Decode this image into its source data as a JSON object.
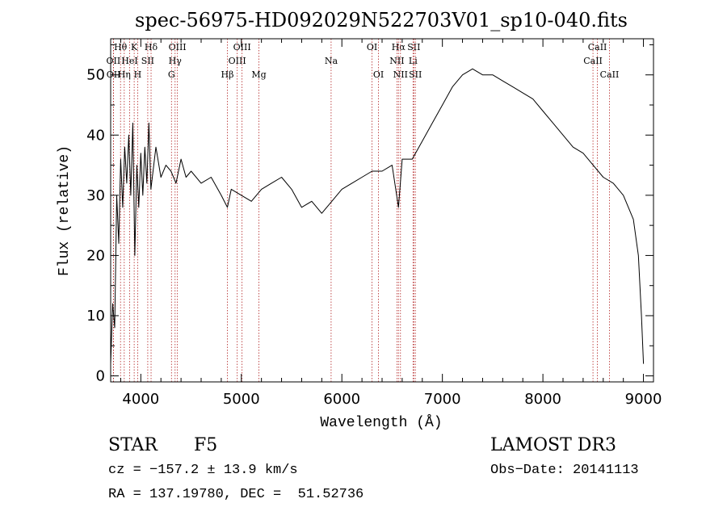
{
  "chart_data": {
    "type": "line",
    "title": "spec-56975-HD092029N522703V01_sp10-040.fits",
    "xlabel": "Wavelength (Å)",
    "ylabel": "Flux (relative)",
    "xlim": [
      3700,
      9100
    ],
    "ylim": [
      -1,
      56
    ],
    "xticks": [
      4000,
      5000,
      6000,
      7000,
      8000,
      9000
    ],
    "yticks": [
      0,
      10,
      20,
      30,
      40,
      50
    ],
    "grid": false,
    "series": [
      {
        "x": [
          3700,
          3720,
          3740,
          3760,
          3780,
          3800,
          3820,
          3840,
          3860,
          3880,
          3900,
          3920,
          3940,
          3960,
          3980,
          4000,
          4020,
          4040,
          4060,
          4080,
          4100,
          4150,
          4200,
          4250,
          4300,
          4350,
          4400,
          4450,
          4500,
          4600,
          4700,
          4800,
          4861,
          4900,
          5000,
          5100,
          5200,
          5300,
          5400,
          5500,
          5600,
          5700,
          5800,
          5900,
          6000,
          6100,
          6200,
          6300,
          6400,
          6500,
          6563,
          6600,
          6700,
          6800,
          6900,
          7000,
          7100,
          7200,
          7300,
          7400,
          7500,
          7600,
          7700,
          7800,
          7900,
          8000,
          8100,
          8200,
          8300,
          8400,
          8500,
          8600,
          8700,
          8800,
          8900,
          8950,
          8980,
          9000
        ],
        "y": [
          2,
          12,
          8,
          30,
          22,
          36,
          28,
          38,
          32,
          40,
          30,
          42,
          20,
          35,
          28,
          37,
          30,
          38,
          32,
          42,
          31,
          38,
          33,
          35,
          34,
          32,
          36,
          33,
          34,
          32,
          33,
          30,
          28,
          31,
          30,
          29,
          31,
          32,
          33,
          31,
          28,
          29,
          27,
          29,
          31,
          32,
          33,
          34,
          34,
          35,
          28,
          36,
          36,
          39,
          42,
          45,
          48,
          50,
          51,
          50,
          50,
          49,
          48,
          47,
          46,
          44,
          42,
          40,
          38,
          37,
          35,
          33,
          32,
          30,
          26,
          20,
          10,
          2
        ]
      }
    ],
    "line_markers": [
      {
        "label": "Hθ",
        "x": 3798,
        "row": 1
      },
      {
        "label": "OII",
        "x": 3727,
        "row": 2
      },
      {
        "label": "OII",
        "x": 3729,
        "row": 3
      },
      {
        "label": "K",
        "x": 3934,
        "row": 1
      },
      {
        "label": "HeI",
        "x": 3889,
        "row": 2
      },
      {
        "label": "Hη",
        "x": 3835,
        "row": 3
      },
      {
        "label": "H",
        "x": 3969,
        "row": 3
      },
      {
        "label": "Hδ",
        "x": 4102,
        "row": 1
      },
      {
        "label": "SII",
        "x": 4069,
        "row": 2
      },
      {
        "label": "OIII",
        "x": 4364,
        "row": 1
      },
      {
        "label": "Hγ",
        "x": 4341,
        "row": 2
      },
      {
        "label": "G",
        "x": 4305,
        "row": 3
      },
      {
        "label": "OIII",
        "x": 5007,
        "row": 1
      },
      {
        "label": "OIII",
        "x": 4959,
        "row": 2
      },
      {
        "label": "Hβ",
        "x": 4861,
        "row": 3
      },
      {
        "label": "Mg",
        "x": 5175,
        "row": 3
      },
      {
        "label": "Na",
        "x": 5893,
        "row": 2
      },
      {
        "label": "OI",
        "x": 6300,
        "row": 1
      },
      {
        "label": "OI",
        "x": 6364,
        "row": 3
      },
      {
        "label": "Hα",
        "x": 6563,
        "row": 1
      },
      {
        "label": "SII",
        "x": 6716,
        "row": 1
      },
      {
        "label": "NII",
        "x": 6548,
        "row": 2
      },
      {
        "label": "Li",
        "x": 6708,
        "row": 2
      },
      {
        "label": "NII",
        "x": 6583,
        "row": 3
      },
      {
        "label": "SII",
        "x": 6731,
        "row": 3
      },
      {
        "label": "CaII",
        "x": 8542,
        "row": 1
      },
      {
        "label": "CaII",
        "x": 8498,
        "row": 2
      },
      {
        "label": "CaII",
        "x": 8662,
        "row": 3
      }
    ],
    "line_color": "#000000",
    "marker_color": "#b22222"
  },
  "info": {
    "object_class": "STAR",
    "subclass": "F5",
    "survey": "LAMOST DR3",
    "cz": "cz = −157.2 ± 13.9 km/s",
    "obs_date": "Obs−Date: 20141113",
    "coords": "RA = 137.19780, DEC =  51.52736"
  }
}
